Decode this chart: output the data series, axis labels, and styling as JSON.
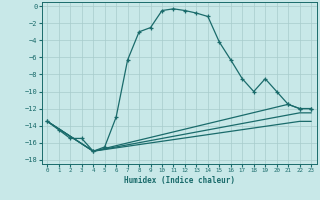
{
  "xlabel": "Humidex (Indice chaleur)",
  "background_color": "#c8e8e8",
  "grid_color": "#a8cccc",
  "line_color": "#1a6b6b",
  "xlim": [
    -0.5,
    23.5
  ],
  "ylim": [
    -18.5,
    0.5
  ],
  "xticks": [
    0,
    1,
    2,
    3,
    4,
    5,
    6,
    7,
    8,
    9,
    10,
    11,
    12,
    13,
    14,
    15,
    16,
    17,
    18,
    19,
    20,
    21,
    22,
    23
  ],
  "yticks": [
    0,
    -2,
    -4,
    -6,
    -8,
    -10,
    -12,
    -14,
    -16,
    -18
  ],
  "curve1_x": [
    0,
    1,
    2,
    3,
    4,
    5,
    6,
    7,
    8,
    9,
    10,
    11,
    12,
    13,
    14,
    15,
    16,
    17,
    18,
    19,
    20,
    21,
    22,
    23
  ],
  "curve1_y": [
    -13.5,
    -14.5,
    -15.5,
    -15.5,
    -17.0,
    -16.5,
    -13.0,
    -6.3,
    -3.0,
    -2.5,
    -0.5,
    -0.3,
    -0.5,
    -0.8,
    -1.2,
    -4.2,
    -6.3,
    -8.5,
    -10.0,
    -8.5,
    -10.0,
    -11.5,
    -12.0,
    -12.0
  ],
  "curve2_x": [
    0,
    4,
    21,
    22,
    23
  ],
  "curve2_y": [
    -13.5,
    -17.0,
    -11.5,
    -12.0,
    -12.0
  ],
  "curve3_x": [
    0,
    4,
    22,
    23
  ],
  "curve3_y": [
    -13.5,
    -17.0,
    -12.5,
    -12.5
  ],
  "curve4_x": [
    0,
    4,
    22,
    23
  ],
  "curve4_y": [
    -13.5,
    -17.0,
    -13.5,
    -13.5
  ]
}
